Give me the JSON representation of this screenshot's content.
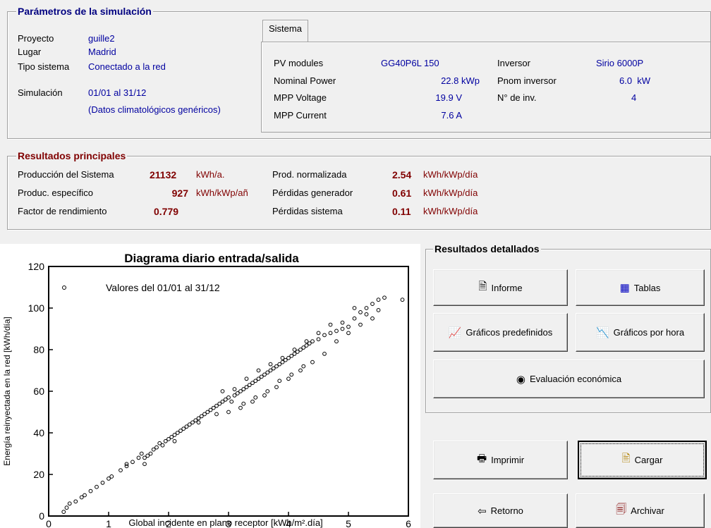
{
  "params": {
    "title": "Parámetros de la simulación",
    "proyecto_label": "Proyecto",
    "proyecto_value": "guille2",
    "lugar_label": "Lugar",
    "lugar_value": "Madrid",
    "tipo_label": "Tipo sistema",
    "tipo_value": "Conectado a la red",
    "sim_label": "Simulación",
    "sim_value": "01/01 al 31/12",
    "sim_note": "(Datos climatológicos genéricos)"
  },
  "sistema": {
    "tab_label": "Sistema",
    "pv_label": "PV modules",
    "pv_value": "GG40P6L 150",
    "np_label": "Nominal Power",
    "np_value": "22.8 kWp",
    "mppv_label": "MPP Voltage",
    "mppv_value": "19.9 V",
    "mppc_label": "MPP Current",
    "mppc_value": "7.6 A",
    "inv_label": "Inversor",
    "inv_value": "Sirio 6000P",
    "pnom_label": "Pnom inversor",
    "pnom_value": "6.0  kW",
    "ninv_label": "N° de inv.",
    "ninv_value": "4"
  },
  "resultados": {
    "title": "Resultados principales",
    "prod_label": "Producción del Sistema",
    "prod_value": "21132",
    "prod_unit": "kWh/a.",
    "espec_label": "Produc. específico",
    "espec_value": "927",
    "espec_unit": "kWh/kWp/añ",
    "factor_label": "Factor de rendimiento",
    "factor_value": "0.779",
    "norm_label": "Prod. normalizada",
    "norm_value": "2.54",
    "norm_unit": "kWh/kWp/día",
    "pgen_label": "Pérdidas generador",
    "pgen_value": "0.61",
    "pgen_unit": "kWh/kWp/día",
    "psis_label": "Pérdidas sistema",
    "psis_value": "0.11",
    "psis_unit": "kWh/kWp/día"
  },
  "detallados": {
    "title": "Resultados detallados",
    "informe": "Informe",
    "tablas": "Tablas",
    "graficos_pre": "Gráficos predefinidos",
    "graficos_hora": "Gráficos por hora",
    "evaluacion": "Evaluación económica"
  },
  "actions": {
    "imprimir": "Imprimir",
    "cargar": "Cargar",
    "retorno": "Retorno",
    "archivar": "Archivar"
  },
  "chart_data": {
    "type": "scatter",
    "title": "Diagrama diario entrada/salida",
    "xlabel": "Global incidente en plano receptor [kWh/m².día]",
    "ylabel": "Energía reinyectada en la red [kWh/día]",
    "legend": "Valores del 01/01 al 31/12",
    "legend_position": "top-left",
    "xlim": [
      0,
      6
    ],
    "ylim": [
      0,
      120
    ],
    "xticks": [
      0,
      1,
      2,
      3,
      4,
      5,
      6
    ],
    "yticks": [
      0,
      20,
      40,
      60,
      80,
      100,
      120
    ],
    "points": [
      [
        0.25,
        2
      ],
      [
        0.3,
        4
      ],
      [
        0.35,
        6
      ],
      [
        0.45,
        7
      ],
      [
        0.55,
        9
      ],
      [
        0.6,
        10
      ],
      [
        0.7,
        12
      ],
      [
        0.8,
        14
      ],
      [
        0.9,
        16
      ],
      [
        1.0,
        18
      ],
      [
        1.05,
        19
      ],
      [
        1.2,
        22
      ],
      [
        1.3,
        24
      ],
      [
        1.4,
        26
      ],
      [
        1.5,
        28
      ],
      [
        1.55,
        30
      ],
      [
        1.6,
        28
      ],
      [
        1.65,
        29
      ],
      [
        1.7,
        30
      ],
      [
        1.75,
        32
      ],
      [
        1.8,
        33
      ],
      [
        1.85,
        35
      ],
      [
        1.9,
        34
      ],
      [
        1.95,
        36
      ],
      [
        2.0,
        37
      ],
      [
        2.05,
        38
      ],
      [
        2.1,
        39
      ],
      [
        2.15,
        40
      ],
      [
        2.2,
        41
      ],
      [
        2.25,
        42
      ],
      [
        2.3,
        43
      ],
      [
        2.35,
        44
      ],
      [
        2.4,
        45
      ],
      [
        2.45,
        46
      ],
      [
        2.5,
        47
      ],
      [
        2.55,
        48
      ],
      [
        2.6,
        49
      ],
      [
        2.65,
        50
      ],
      [
        2.7,
        51
      ],
      [
        2.75,
        52
      ],
      [
        2.8,
        53
      ],
      [
        2.85,
        54
      ],
      [
        2.9,
        55
      ],
      [
        2.95,
        56
      ],
      [
        3.0,
        57
      ],
      [
        3.05,
        55
      ],
      [
        3.1,
        58
      ],
      [
        3.15,
        59
      ],
      [
        3.2,
        60
      ],
      [
        3.25,
        61
      ],
      [
        3.3,
        62
      ],
      [
        3.35,
        63
      ],
      [
        3.4,
        64
      ],
      [
        3.45,
        65
      ],
      [
        3.5,
        66
      ],
      [
        3.55,
        67
      ],
      [
        3.6,
        68
      ],
      [
        3.65,
        69
      ],
      [
        3.7,
        70
      ],
      [
        3.75,
        71
      ],
      [
        3.8,
        72
      ],
      [
        3.85,
        73
      ],
      [
        3.9,
        74
      ],
      [
        3.95,
        75
      ],
      [
        4.0,
        76
      ],
      [
        4.05,
        77
      ],
      [
        4.1,
        78
      ],
      [
        4.15,
        79
      ],
      [
        4.2,
        80
      ],
      [
        4.25,
        81
      ],
      [
        4.3,
        82
      ],
      [
        4.35,
        83
      ],
      [
        4.4,
        84
      ],
      [
        4.5,
        85
      ],
      [
        4.6,
        87
      ],
      [
        4.7,
        88
      ],
      [
        4.8,
        89
      ],
      [
        4.9,
        90
      ],
      [
        5.0,
        91
      ],
      [
        5.1,
        95
      ],
      [
        5.2,
        98
      ],
      [
        5.3,
        100
      ],
      [
        5.4,
        102
      ],
      [
        5.5,
        104
      ],
      [
        5.6,
        105
      ],
      [
        5.9,
        104
      ],
      [
        1.3,
        25
      ],
      [
        1.6,
        25
      ],
      [
        2.1,
        36
      ],
      [
        2.5,
        45
      ],
      [
        2.8,
        49
      ],
      [
        3.0,
        50
      ],
      [
        3.2,
        52
      ],
      [
        3.4,
        55
      ],
      [
        3.6,
        58
      ],
      [
        3.8,
        62
      ],
      [
        4.0,
        66
      ],
      [
        4.2,
        70
      ],
      [
        4.4,
        74
      ],
      [
        4.6,
        78
      ],
      [
        4.8,
        84
      ],
      [
        5.0,
        88
      ],
      [
        5.2,
        92
      ],
      [
        5.4,
        95
      ],
      [
        2.9,
        60
      ],
      [
        3.1,
        61
      ],
      [
        3.3,
        66
      ],
      [
        3.5,
        70
      ],
      [
        3.7,
        73
      ],
      [
        3.9,
        76
      ],
      [
        4.1,
        80
      ],
      [
        4.3,
        84
      ],
      [
        4.5,
        88
      ],
      [
        4.7,
        92
      ],
      [
        4.9,
        93
      ],
      [
        5.1,
        100
      ],
      [
        5.3,
        97
      ],
      [
        5.5,
        99
      ],
      [
        3.25,
        54
      ],
      [
        3.45,
        57
      ],
      [
        3.65,
        60
      ],
      [
        3.85,
        65
      ],
      [
        4.05,
        68
      ],
      [
        4.25,
        72
      ]
    ]
  }
}
